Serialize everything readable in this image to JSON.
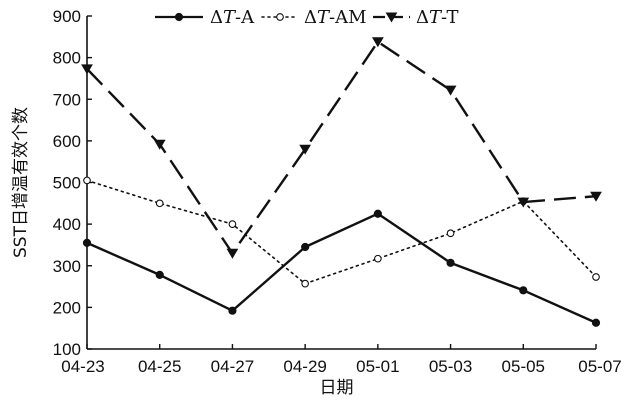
{
  "chart_data": {
    "type": "line",
    "title": "",
    "xlabel": "日期",
    "ylabel": "SST日增温有效个数",
    "categories": [
      "04-23",
      "04-25",
      "04-27",
      "04-29",
      "05-01",
      "05-03",
      "05-05",
      "05-07"
    ],
    "ylim": [
      100,
      900
    ],
    "yticks": [
      100,
      200,
      300,
      400,
      500,
      600,
      700,
      800,
      900
    ],
    "grid": false,
    "legend_position": "top",
    "series": [
      {
        "name": "ΔT-A",
        "legend_prefix": "Δ",
        "legend_italic": "T",
        "legend_suffix": "-A",
        "style": "solid",
        "marker": "filled-circle",
        "color": "#111111",
        "values": [
          355,
          278,
          192,
          345,
          425,
          307,
          241,
          163
        ]
      },
      {
        "name": "ΔT-AM",
        "legend_prefix": "Δ",
        "legend_italic": "T",
        "legend_suffix": "-AM",
        "style": "dotted",
        "marker": "open-circle",
        "color": "#111111",
        "values": [
          505,
          450,
          400,
          257,
          317,
          378,
          455,
          273
        ]
      },
      {
        "name": "ΔT-T",
        "legend_prefix": "Δ",
        "legend_italic": "T",
        "legend_suffix": "-T",
        "style": "dashed",
        "marker": "filled-triangle-down",
        "color": "#111111",
        "values": [
          773,
          592,
          330,
          580,
          838,
          722,
          453,
          467
        ]
      }
    ]
  }
}
